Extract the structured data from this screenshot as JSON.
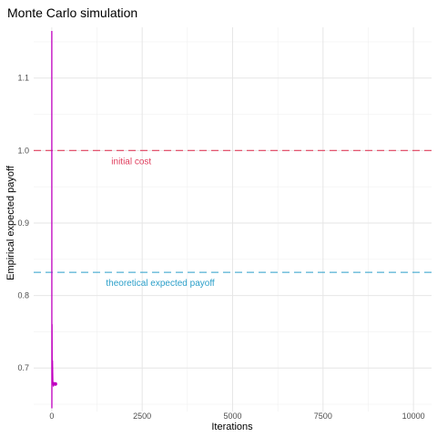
{
  "chart_data": {
    "type": "line",
    "title": "Monte Carlo simulation",
    "xlabel": "Iterations",
    "ylabel": "Empirical expected payoff",
    "xlim": [
      -500,
      10500
    ],
    "ylim": [
      0.64,
      1.17
    ],
    "x_ticks": [
      0,
      2500,
      5000,
      7500,
      10000
    ],
    "x_tick_labels": [
      "0",
      "2500",
      "5000",
      "7500",
      "10000"
    ],
    "y_ticks": [
      0.7,
      0.8,
      0.9,
      1.0,
      1.1
    ],
    "y_tick_labels": [
      "0.7",
      "0.8",
      "0.9",
      "1.0",
      "1.1"
    ],
    "grid": true,
    "legend": "none",
    "series": [
      {
        "color": "#c000c0",
        "x": [
          1,
          2,
          3,
          5,
          8,
          12,
          20,
          30,
          45,
          60,
          80,
          100
        ],
        "y": [
          1.165,
          0.82,
          0.645,
          0.72,
          0.76,
          0.695,
          0.71,
          0.68,
          0.675,
          0.68,
          0.677,
          0.678
        ]
      }
    ],
    "points": [
      {
        "x": 100,
        "y": 0.678,
        "color": "#c000c0"
      }
    ],
    "hlines": [
      {
        "y": 1.0,
        "label": "initial cost",
        "label_x": 2200,
        "label_y": 0.985,
        "color": "#e0405f"
      },
      {
        "y": 0.832,
        "label": "theoretical expected payoff",
        "label_x": 3000,
        "label_y": 0.817,
        "color": "#2b9fc9"
      }
    ]
  }
}
